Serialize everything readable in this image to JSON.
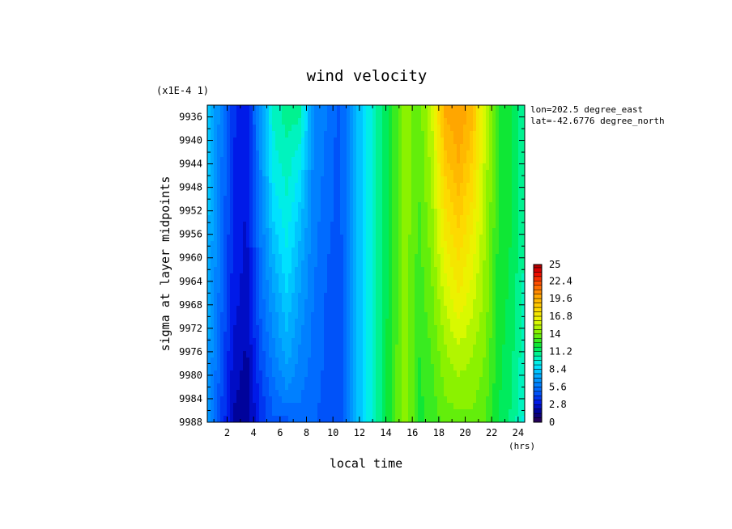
{
  "chart_data": {
    "type": "heatmap",
    "title": "wind velocity",
    "scale_note": "(x1E-4 1)",
    "xlabel": "local time",
    "xunit": "(hrs)",
    "ylabel": "sigma at layer midpoints",
    "annotations": [
      "lon=202.5 degree_east",
      "lat=-42.6776 degree_north"
    ],
    "xlim": [
      0.5,
      24.5
    ],
    "ylim": [
      9988,
      9934
    ],
    "xticks": [
      2,
      4,
      6,
      8,
      10,
      12,
      14,
      16,
      18,
      20,
      22,
      24
    ],
    "xtick_labels": [
      "2",
      "4",
      "6",
      "8",
      "10",
      "12",
      "14",
      "16",
      "18",
      "20",
      "22",
      "24"
    ],
    "yticks": [
      9936,
      9940,
      9944,
      9948,
      9952,
      9956,
      9960,
      9964,
      9968,
      9972,
      9976,
      9980,
      9984,
      9988
    ],
    "ytick_labels": [
      "9936",
      "9940",
      "9944",
      "9948",
      "9952",
      "9956",
      "9960",
      "9964",
      "9968",
      "9972",
      "9976",
      "9980",
      "9984",
      "9988"
    ],
    "x": [
      0.5,
      1.5,
      2.5,
      3.5,
      4.5,
      5.5,
      6.5,
      7.5,
      8.5,
      9.5,
      10.5,
      11.5,
      12.5,
      13.5,
      14.5,
      15.5,
      16.5,
      17.5,
      18.5,
      19.5,
      20.5,
      21.5,
      22.5,
      23.5,
      24.5
    ],
    "y": [
      9936,
      9944,
      9952,
      9960,
      9968,
      9976,
      9984,
      9988
    ],
    "z": [
      [
        8.4,
        6.0,
        3.6,
        3.0,
        6.5,
        10.0,
        10.8,
        10.6,
        6.4,
        5.6,
        4.6,
        7.0,
        9.0,
        10.8,
        12.6,
        14.4,
        13.5,
        15.5,
        19.6,
        20.2,
        19.2,
        15.4,
        12.6,
        12.0,
        10.6
      ],
      [
        8.2,
        5.8,
        3.5,
        2.8,
        6.2,
        9.4,
        10.2,
        9.2,
        6.2,
        5.4,
        4.6,
        7.0,
        9.0,
        10.8,
        12.6,
        14.4,
        13.4,
        15.0,
        18.6,
        19.6,
        18.2,
        15.2,
        12.6,
        12.0,
        10.6
      ],
      [
        8.0,
        5.6,
        3.4,
        2.7,
        5.8,
        8.6,
        9.6,
        8.2,
        6.0,
        5.2,
        4.6,
        7.0,
        9.0,
        10.8,
        12.6,
        14.4,
        13.2,
        14.6,
        17.4,
        18.6,
        17.2,
        15.0,
        12.6,
        12.0,
        10.6
      ],
      [
        7.8,
        5.4,
        3.2,
        2.6,
        5.4,
        7.6,
        9.0,
        7.4,
        5.8,
        5.0,
        4.4,
        7.0,
        9.0,
        10.8,
        12.6,
        14.4,
        13.0,
        14.2,
        16.4,
        17.6,
        16.4,
        14.6,
        12.4,
        11.8,
        10.4
      ],
      [
        7.6,
        5.2,
        3.0,
        2.4,
        5.0,
        6.8,
        8.2,
        6.8,
        5.6,
        4.8,
        4.4,
        7.0,
        9.0,
        10.8,
        12.6,
        14.4,
        12.8,
        13.8,
        15.4,
        16.6,
        15.6,
        14.4,
        12.4,
        11.6,
        10.2
      ],
      [
        7.2,
        4.8,
        2.6,
        2.0,
        4.4,
        6.0,
        7.4,
        6.2,
        5.4,
        4.8,
        4.2,
        7.0,
        9.0,
        10.8,
        12.8,
        14.4,
        12.6,
        13.4,
        14.6,
        15.2,
        14.8,
        14.0,
        12.2,
        11.4,
        10.0
      ],
      [
        7.0,
        4.4,
        2.2,
        1.6,
        3.8,
        5.2,
        6.0,
        5.6,
        5.2,
        4.6,
        4.2,
        7.0,
        9.0,
        10.8,
        12.8,
        14.6,
        12.4,
        13.0,
        14.0,
        14.2,
        14.2,
        13.6,
        12.0,
        11.2,
        9.8
      ],
      [
        6.8,
        4.2,
        2.0,
        1.4,
        3.6,
        4.8,
        4.6,
        5.4,
        5.0,
        4.6,
        4.2,
        7.0,
        9.0,
        10.8,
        12.8,
        14.6,
        12.4,
        12.8,
        13.6,
        13.8,
        13.8,
        13.4,
        11.8,
        11.0,
        9.6
      ]
    ],
    "colorbar": {
      "min": 0,
      "max": 25,
      "step": 0.7,
      "tick_values": [
        0,
        2.8,
        5.6,
        8.4,
        11.2,
        14,
        16.8,
        19.6,
        22.4,
        25
      ],
      "tick_labels": [
        "0",
        "2.8",
        "5.6",
        "8.4",
        "11.2",
        "14",
        "16.8",
        "19.6",
        "22.4",
        "25"
      ]
    }
  }
}
